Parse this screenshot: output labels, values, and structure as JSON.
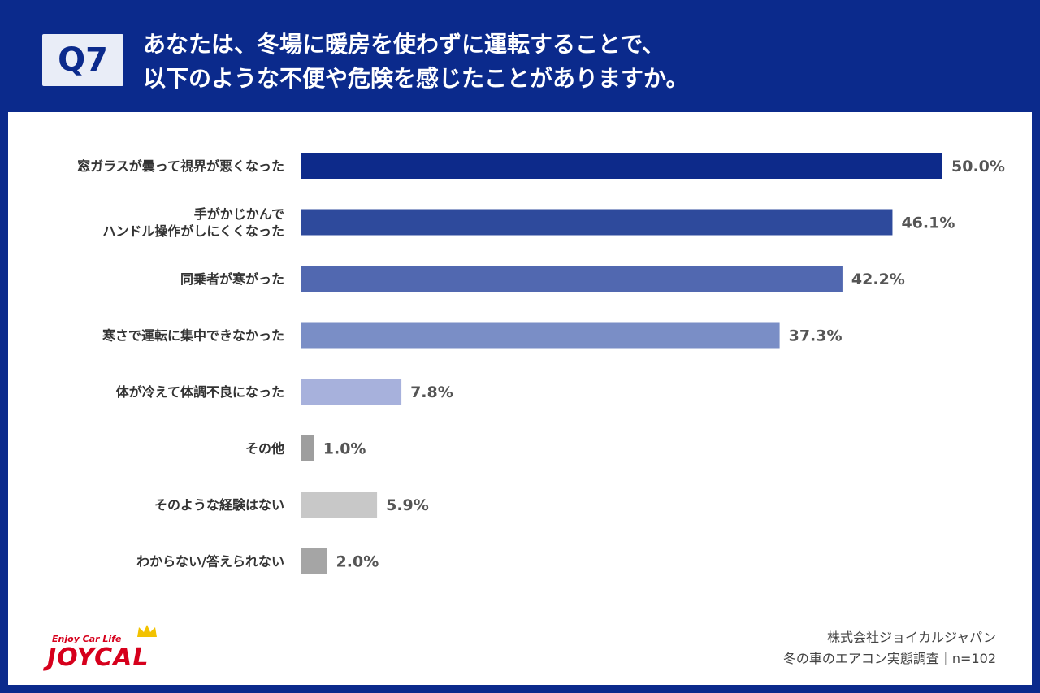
{
  "header": {
    "badge": "Q7",
    "title_line1": "あなたは、冬場に暖房を使わずに運転することで、",
    "title_line2": "以下のような不便や危険を感じたことがありますか。"
  },
  "chart_data": {
    "type": "bar",
    "orientation": "horizontal",
    "categories": [
      [
        "窓ガラスが曇って視界が悪くなった"
      ],
      [
        "手がかじかんで",
        "ハンドル操作がしにくくなった"
      ],
      [
        "同乗者が寒がった"
      ],
      [
        "寒さで運転に集中できなかった"
      ],
      [
        "体が冷えて体調不良になった"
      ],
      [
        "その他"
      ],
      [
        "そのような経験はない"
      ],
      [
        "わからない/答えられない"
      ]
    ],
    "values": [
      50.0,
      46.1,
      42.2,
      37.3,
      7.8,
      1.0,
      5.9,
      2.0
    ],
    "value_labels": [
      "50.0%",
      "46.1%",
      "42.2%",
      "37.3%",
      "7.8%",
      "1.0%",
      "5.9%",
      "2.0%"
    ],
    "colors": [
      "#0d2a8a",
      "#2e4a9c",
      "#5168b0",
      "#7a8ec6",
      "#a7b1dc",
      "#9e9e9e",
      "#c8c8c8",
      "#a5a5a5"
    ],
    "xlim": [
      0,
      50
    ],
    "unit": "%"
  },
  "logo": {
    "tagline": "Enjoy Car Life",
    "name": "JOYCAL"
  },
  "footer": {
    "company": "株式会社ジョイカルジャパン",
    "survey": "冬の車のエアコン実態調査｜n=102"
  }
}
